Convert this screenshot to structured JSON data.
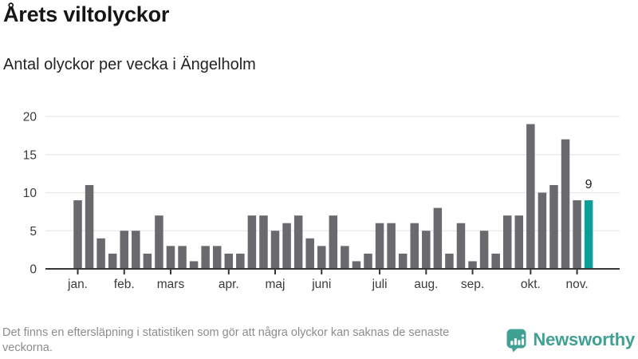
{
  "header": {
    "title": "Årets viltolyckor",
    "subtitle": "Antal olyckor per vecka i Ängelholm"
  },
  "chart_data": {
    "type": "bar",
    "title": "Årets viltolyckor",
    "subtitle": "Antal olyckor per vecka i Ängelholm",
    "x_unit": "vecka (week number)",
    "weeks_start": 1,
    "values": [
      9,
      11,
      4,
      2,
      5,
      5,
      2,
      7,
      3,
      3,
      1,
      3,
      3,
      2,
      2,
      7,
      7,
      5,
      6,
      7,
      4,
      3,
      7,
      3,
      1,
      2,
      6,
      6,
      2,
      6,
      5,
      8,
      2,
      6,
      1,
      5,
      2,
      7,
      7,
      19,
      10,
      11,
      17,
      9,
      9
    ],
    "highlight_last_bar": true,
    "annotation": {
      "week": 45,
      "value": 9,
      "label": "9"
    },
    "y_ticks": [
      0,
      5,
      10,
      15,
      20
    ],
    "ylim": [
      0,
      20
    ],
    "grid": "horizontal",
    "legend_shown": false,
    "month_ticks": [
      {
        "label": "jan.",
        "week": 1
      },
      {
        "label": "feb.",
        "week": 5
      },
      {
        "label": "mars",
        "week": 9
      },
      {
        "label": "apr.",
        "week": 14
      },
      {
        "label": "maj",
        "week": 18
      },
      {
        "label": "juni",
        "week": 22
      },
      {
        "label": "juli",
        "week": 27
      },
      {
        "label": "aug.",
        "week": 31
      },
      {
        "label": "sep.",
        "week": 35
      },
      {
        "label": "okt.",
        "week": 40
      },
      {
        "label": "nov.",
        "week": 44
      }
    ],
    "colors": {
      "bar": "#69696e",
      "highlight": "#0aa098",
      "grid": "#e8e8e8",
      "axis": "#35353a",
      "tick_label": "#3b3b3b",
      "annotation": "#222222"
    }
  },
  "footer": {
    "note": "Det finns en eftersläpning i statistiken som gör att några olyckor kan saknas de senaste veckorna.",
    "logo": {
      "label": "Newsworthy",
      "icon": "newsworthy-speech-bubble-barchart-icon",
      "color": "#3fa093"
    }
  }
}
